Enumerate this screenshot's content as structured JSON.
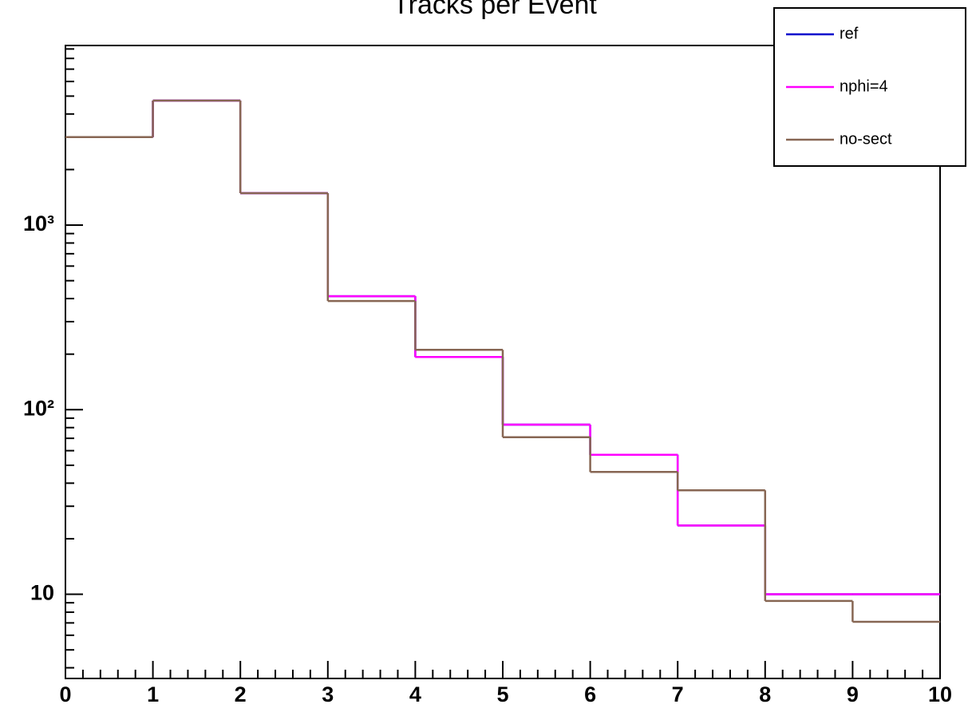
{
  "chart_data": {
    "type": "histogram",
    "title": "Tracks per Event",
    "bins": [
      0,
      1,
      2,
      3,
      4,
      5,
      6,
      7,
      8,
      9,
      10
    ],
    "series": [
      {
        "name": "ref",
        "color": "#0000cc",
        "values": [
          3000,
          4730,
          1490,
          412,
          193,
          83,
          57,
          23.6,
          10,
          10
        ]
      },
      {
        "name": "nphi=4",
        "color": "#ff00ff",
        "values": [
          3000,
          4730,
          1490,
          412,
          193,
          83,
          57,
          23.6,
          10,
          10
        ]
      },
      {
        "name": "no-sect",
        "color": "#876653",
        "values": [
          3000,
          4730,
          1490,
          388,
          211,
          71,
          46,
          36.6,
          9.2,
          7.1
        ]
      }
    ],
    "xlim": [
      0,
      10
    ],
    "xticks": [
      0,
      1,
      2,
      3,
      4,
      5,
      6,
      7,
      8,
      9,
      10
    ],
    "xminorticks": [
      0.2,
      0.4,
      0.6,
      0.8,
      1.2,
      1.4,
      1.6,
      1.8,
      2.2,
      2.4,
      2.6,
      2.8,
      3.2,
      3.4,
      3.6,
      3.8,
      4.2,
      4.4,
      4.6,
      4.8,
      5.2,
      5.4,
      5.6,
      5.8,
      6.2,
      6.4,
      6.6,
      6.8,
      7.2,
      7.4,
      7.6,
      7.8,
      8.2,
      8.4,
      8.6,
      8.8,
      9.2,
      9.4,
      9.6,
      9.8
    ],
    "ylim": [
      3.5,
      9400
    ],
    "log_y": true,
    "yticks": [
      10,
      {
        "value": 100,
        "label": "10²"
      },
      {
        "value": 1000,
        "label": "10³"
      }
    ],
    "yminorticks": [
      4,
      5,
      6,
      7,
      8,
      9,
      20,
      30,
      40,
      50,
      60,
      70,
      80,
      90,
      200,
      300,
      400,
      500,
      600,
      700,
      800,
      900,
      2000,
      3000,
      4000,
      5000,
      6000,
      7000,
      8000,
      9000
    ],
    "legend": "top-right"
  }
}
